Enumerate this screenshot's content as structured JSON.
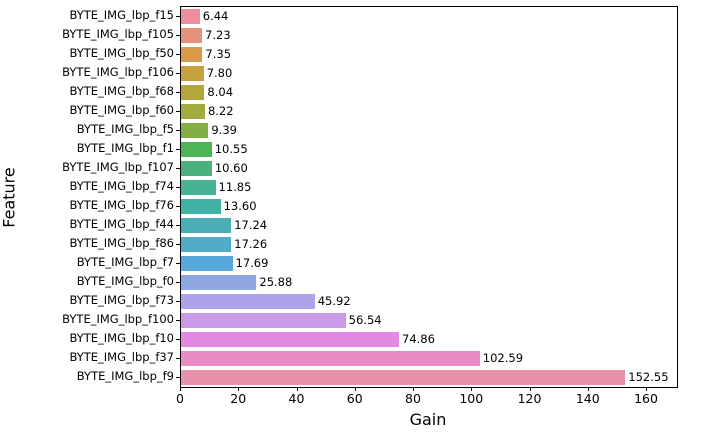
{
  "chart_data": {
    "type": "bar",
    "orientation": "horizontal",
    "title": "",
    "xlabel": "Gain",
    "ylabel": "Feature",
    "xlim": [
      0,
      170.3
    ],
    "x_ticks": [
      0,
      20,
      40,
      60,
      80,
      100,
      120,
      140,
      160
    ],
    "grid": false,
    "legend": "none",
    "categories": [
      "BYTE_IMG_lbp_f15",
      "BYTE_IMG_lbp_f105",
      "BYTE_IMG_lbp_f50",
      "BYTE_IMG_lbp_f106",
      "BYTE_IMG_lbp_f68",
      "BYTE_IMG_lbp_f60",
      "BYTE_IMG_lbp_f5",
      "BYTE_IMG_lbp_f1",
      "BYTE_IMG_lbp_f107",
      "BYTE_IMG_lbp_f74",
      "BYTE_IMG_lbp_f76",
      "BYTE_IMG_lbp_f44",
      "BYTE_IMG_lbp_f86",
      "BYTE_IMG_lbp_f7",
      "BYTE_IMG_lbp_f0",
      "BYTE_IMG_lbp_f73",
      "BYTE_IMG_lbp_f100",
      "BYTE_IMG_lbp_f10",
      "BYTE_IMG_lbp_f37",
      "BYTE_IMG_lbp_f9"
    ],
    "values": [
      6.44,
      7.23,
      7.35,
      7.8,
      8.04,
      8.22,
      9.39,
      10.55,
      10.6,
      11.85,
      13.6,
      17.24,
      17.26,
      17.69,
      25.88,
      45.92,
      56.54,
      74.86,
      102.59,
      152.55
    ],
    "value_labels": [
      "6.44",
      "7.23",
      "7.35",
      "7.80",
      "8.04",
      "8.22",
      "9.39",
      "10.55",
      "10.60",
      "11.85",
      "13.60",
      "17.24",
      "17.26",
      "17.69",
      "25.88",
      "45.92",
      "56.54",
      "74.86",
      "102.59",
      "152.55"
    ],
    "bar_colors": [
      "#ee8d9e",
      "#e6937e",
      "#d89b49",
      "#c5a23d",
      "#b3a73c",
      "#a2ab3e",
      "#83b046",
      "#4eb556",
      "#4bb27e",
      "#47b394",
      "#41b1a6",
      "#4aaeb4",
      "#52abc7",
      "#59a8dc",
      "#8ea6e2",
      "#b0a2e8",
      "#c99ae8",
      "#e289e3",
      "#e98cc5",
      "#e891ab"
    ],
    "axis_color": "#000000",
    "background_color": "#ffffff"
  }
}
